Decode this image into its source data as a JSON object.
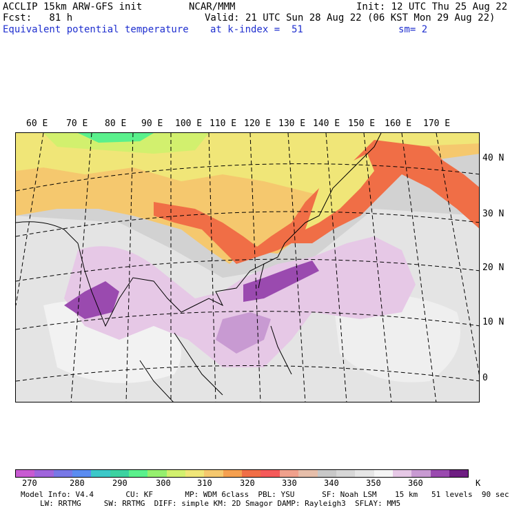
{
  "header": {
    "line1_left": "ACCLIP 15km ARW-GFS init",
    "line1_center": "NCAR/MMM",
    "line1_right": "Init: 12 UTC Thu 25 Aug 22",
    "line2_left": "Fcst:   81 h",
    "line2_right": "Valid: 21 UTC Sun 28 Aug 22 (06 KST Mon 29 Aug 22)",
    "line3_left": "Equivalent potential temperature",
    "line3_center": "at k-index =  51",
    "line3_right": "sm= 2"
  },
  "map": {
    "lon_labels": [
      "60 E",
      "70 E",
      "80 E",
      "90 E",
      "100 E",
      "110 E",
      "120 E",
      "130 E",
      "140 E",
      "150 E",
      "160 E",
      "170 E"
    ],
    "lat_labels": [
      "40 N",
      "30 N",
      "20 N",
      "10 N",
      "0"
    ]
  },
  "colorbar": {
    "unit": "K",
    "colors": [
      "#c85ad2",
      "#a065dc",
      "#7878e6",
      "#5a8cf0",
      "#3cc8c8",
      "#3cd2a0",
      "#5af08c",
      "#96f06e",
      "#d2f06e",
      "#f0e678",
      "#f5c86e",
      "#f5a050",
      "#f06e46",
      "#f55a5a",
      "#f0a08c",
      "#e6beaa",
      "#c8c8c8",
      "#d7d7d7",
      "#e6e6e6",
      "#f5f5f5",
      "#e6c8e6",
      "#c89ad2",
      "#9a4aaf",
      "#6e1e82"
    ],
    "tick_labels": [
      "270",
      "280",
      "290",
      "300",
      "310",
      "320",
      "330",
      "340",
      "350",
      "360"
    ]
  },
  "footer": {
    "line1": "Model Info: V4.4       CU: KF       MP: WDM 6class  PBL: YSU      SF: Noah LSM    15 km   51 levels  90 sec",
    "line2": "LW: RRTMG     SW: RRTMG  DIFF: simple KM: 2D Smagor DAMP: Rayleigh3  SFLAY: MM5"
  }
}
